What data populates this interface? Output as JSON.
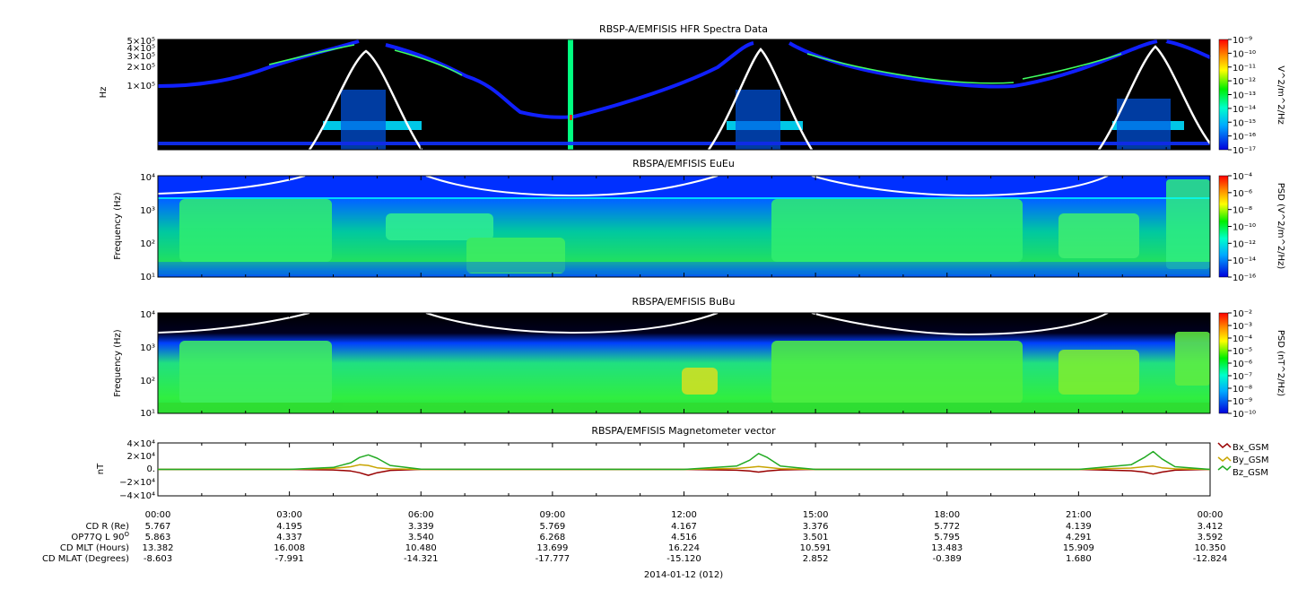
{
  "chart_data": [
    {
      "type": "heatmap",
      "title": "RBSP-A/EMFISIS  HFR Spectra Data",
      "ylabel": "Hz",
      "ytick_labels": [
        "1×10⁵",
        "2×10⁵",
        "3×10⁵",
        "4×10⁵",
        "5×10⁵"
      ],
      "yscale": "log",
      "ylim": [
        10000,
        500000
      ],
      "colorbar": {
        "label": "V^2/m^2/Hz",
        "scale": "log",
        "range": [
          1e-17,
          1e-09
        ],
        "tick_labels": [
          "10⁻⁹",
          "10⁻¹⁰",
          "10⁻¹¹",
          "10⁻¹²",
          "10⁻¹³",
          "10⁻¹⁴",
          "10⁻¹⁵",
          "10⁻¹⁶",
          "10⁻¹⁷"
        ]
      },
      "overlay": "fce/fpe curve (white)",
      "peaks_hours": [
        4.7,
        13.8,
        22.8
      ]
    },
    {
      "type": "heatmap",
      "title": "RBSPA/EMFISIS  EuEu",
      "ylabel": "Frequency (Hz)",
      "ytick_labels": [
        "10¹",
        "10²",
        "10³",
        "10⁴"
      ],
      "yscale": "log",
      "ylim": [
        10,
        10000
      ],
      "colorbar": {
        "label": "PSD (V^2/m^2/Hz)",
        "scale": "log",
        "range": [
          1e-16,
          0.0001
        ],
        "tick_labels": [
          "10⁻⁴",
          "10⁻⁶",
          "10⁻⁸",
          "10⁻¹⁰",
          "10⁻¹²",
          "10⁻¹⁴",
          "10⁻¹⁶"
        ]
      }
    },
    {
      "type": "heatmap",
      "title": "RBSPA/EMFISIS  BuBu",
      "ylabel": "Frequency (Hz)",
      "ytick_labels": [
        "10¹",
        "10²",
        "10³",
        "10⁴"
      ],
      "yscale": "log",
      "ylim": [
        10,
        10000
      ],
      "colorbar": {
        "label": "PSD (nT^2/Hz)",
        "scale": "log",
        "range": [
          1e-10,
          0.01
        ],
        "tick_labels": [
          "10⁻²",
          "10⁻³",
          "10⁻⁴",
          "10⁻⁵",
          "10⁻⁶",
          "10⁻⁷",
          "10⁻⁸",
          "10⁻⁹",
          "10⁻¹⁰"
        ]
      }
    },
    {
      "type": "line",
      "title": "RBSPA/EMFISIS  Magnetometer vector",
      "ylabel": "nT",
      "ylim": [
        -40000,
        40000
      ],
      "ytick_labels": [
        "4×10⁴",
        "2×10⁴",
        "0.",
        "−2×10⁴",
        "−4×10⁴"
      ],
      "x_hours": [
        0,
        3,
        4,
        4.4,
        4.6,
        4.8,
        5.0,
        5.3,
        6,
        12,
        13.2,
        13.5,
        13.7,
        13.9,
        14.2,
        15,
        21,
        22.2,
        22.5,
        22.7,
        22.9,
        23.2,
        24
      ],
      "series": [
        {
          "name": "Bx_GSM",
          "color": "#990000",
          "values": [
            0,
            0,
            -800,
            -2500,
            -5000,
            -9000,
            -5000,
            -1500,
            0,
            0,
            -1200,
            -2500,
            -4000,
            -2500,
            -800,
            0,
            0,
            -2000,
            -4000,
            -7000,
            -4000,
            -1200,
            0
          ]
        },
        {
          "name": "By_GSM",
          "color": "#c8a400",
          "values": [
            0,
            0,
            1500,
            4000,
            7000,
            6000,
            2500,
            800,
            0,
            0,
            1500,
            3000,
            4500,
            3000,
            1000,
            0,
            0,
            2000,
            4000,
            5000,
            2500,
            800,
            0
          ]
        },
        {
          "name": "Bz_GSM",
          "color": "#22aa22",
          "values": [
            0,
            0,
            3000,
            10000,
            18000,
            22000,
            17000,
            6000,
            300,
            0,
            5000,
            14000,
            24000,
            18000,
            5000,
            0,
            0,
            7000,
            18000,
            27000,
            16000,
            4000,
            0
          ]
        }
      ]
    }
  ],
  "x_axis": {
    "ticks": [
      "00:00",
      "03:00",
      "06:00",
      "09:00",
      "12:00",
      "15:00",
      "18:00",
      "21:00",
      "00:00"
    ],
    "date_label": "2014-01-12 (012)"
  },
  "ephemeris": [
    {
      "label": "CD R (Re)",
      "values": [
        "5.767",
        "4.195",
        "3.339",
        "5.769",
        "4.167",
        "3.376",
        "5.772",
        "4.139",
        "3.412"
      ]
    },
    {
      "label": "OP77Q L 90",
      "label_sup": "O",
      "values": [
        "5.863",
        "4.337",
        "3.540",
        "6.268",
        "4.516",
        "3.501",
        "5.795",
        "4.291",
        "3.592"
      ]
    },
    {
      "label": "CD MLT (Hours)",
      "values": [
        "13.382",
        "16.008",
        "10.480",
        "13.699",
        "16.224",
        "10.591",
        "13.483",
        "15.909",
        "10.350"
      ]
    },
    {
      "label": "CD MLAT (Degrees)",
      "values": [
        "-8.603",
        "-7.991",
        "-14.321",
        "-17.777",
        "-15.120",
        "2.852",
        "-0.389",
        "1.680",
        "-12.824"
      ]
    }
  ]
}
